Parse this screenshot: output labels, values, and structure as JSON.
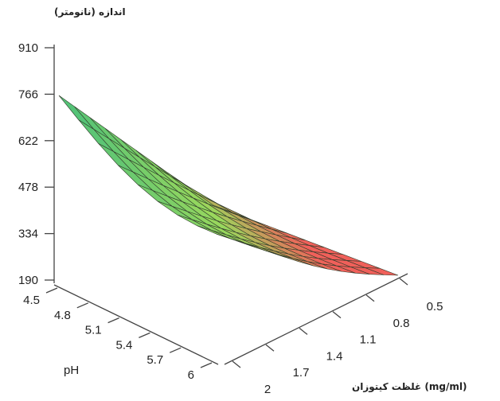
{
  "chart_data": {
    "type": "surface3d",
    "z_axis": {
      "label": "اندازه (نانومتر)",
      "ticks": [
        "910",
        "766",
        "622",
        "478",
        "334",
        "190"
      ],
      "range": [
        190,
        910
      ]
    },
    "ph_axis": {
      "label": "pH",
      "ticks": [
        "4.5",
        "4.8",
        "5.1",
        "5.4",
        "5.7",
        "6"
      ],
      "range": [
        4.5,
        6
      ]
    },
    "chitosan_axis": {
      "label": "غلظت کیتوزان (mg/ml)",
      "ticks": [
        "0.5",
        "0.8",
        "1.1",
        "1.4",
        "1.7",
        "2"
      ],
      "range": [
        0.5,
        2
      ]
    },
    "surface": {
      "ph_values": [
        4.5,
        4.8,
        5.1,
        5.4,
        5.7,
        6.0
      ],
      "chitosan_values": [
        0.5,
        0.8,
        1.1,
        1.4,
        1.7,
        2.0
      ],
      "description_colors": [
        "#4cc07a",
        "#8fd65a",
        "#f0605a"
      ],
      "color_high": "#4cc07a",
      "color_mid": "#9ad85c",
      "color_low": "#f0605a"
    }
  }
}
